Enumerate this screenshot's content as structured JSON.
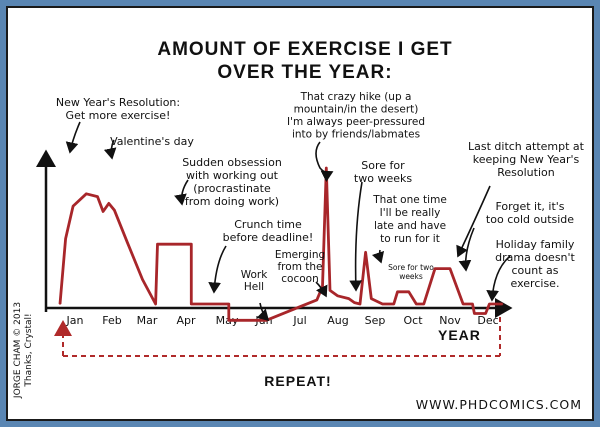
{
  "chart_data": {
    "type": "line",
    "title_lines": [
      "AMOUNT OF EXERCISE I GET",
      "OVER THE YEAR:"
    ],
    "xlabel": "YEAR",
    "ylabel": "",
    "categories": [
      "Jan",
      "Feb",
      "Mar",
      "Apr",
      "May",
      "Jun",
      "Jul",
      "Aug",
      "Sep",
      "Oct",
      "Nov",
      "Dec"
    ],
    "grid": false,
    "series": [
      {
        "values": [
          {
            "x": 0.0,
            "y": 0
          },
          {
            "x": 0.15,
            "y": 4.8
          },
          {
            "x": 0.35,
            "y": 7.2
          },
          {
            "x": 0.7,
            "y": 8.1
          },
          {
            "x": 1.0,
            "y": 7.9
          },
          {
            "x": 1.15,
            "y": 6.8
          },
          {
            "x": 1.3,
            "y": 7.4
          },
          {
            "x": 1.45,
            "y": 6.9
          },
          {
            "x": 1.8,
            "y": 4.5
          },
          {
            "x": 2.2,
            "y": 1.8
          },
          {
            "x": 2.55,
            "y": 0
          },
          {
            "x": 2.6,
            "y": 4.4
          },
          {
            "x": 3.5,
            "y": 4.4
          },
          {
            "x": 3.5,
            "y": 0
          },
          {
            "x": 4.5,
            "y": 0
          },
          {
            "x": 4.5,
            "y": -1.2
          },
          {
            "x": 5.5,
            "y": -1.2
          },
          {
            "x": 6.4,
            "y": -0.2
          },
          {
            "x": 6.85,
            "y": 0.3
          },
          {
            "x": 7.0,
            "y": 1.3
          },
          {
            "x": 7.1,
            "y": 10.0
          },
          {
            "x": 7.2,
            "y": 1.0
          },
          {
            "x": 7.4,
            "y": 0.6
          },
          {
            "x": 7.7,
            "y": 0.4
          },
          {
            "x": 7.85,
            "y": 0.1
          },
          {
            "x": 8.0,
            "y": 0
          },
          {
            "x": 8.15,
            "y": 3.8
          },
          {
            "x": 8.3,
            "y": 0.4
          },
          {
            "x": 8.6,
            "y": 0
          },
          {
            "x": 8.9,
            "y": 0
          },
          {
            "x": 9.0,
            "y": 0.9
          },
          {
            "x": 9.3,
            "y": 0.9
          },
          {
            "x": 9.5,
            "y": 0
          },
          {
            "x": 9.7,
            "y": 0
          },
          {
            "x": 10.0,
            "y": 2.6
          },
          {
            "x": 10.4,
            "y": 2.6
          },
          {
            "x": 10.75,
            "y": 0
          },
          {
            "x": 11.0,
            "y": 0
          },
          {
            "x": 11.05,
            "y": -0.7
          },
          {
            "x": 11.35,
            "y": -0.7
          },
          {
            "x": 11.45,
            "y": 0
          },
          {
            "x": 11.8,
            "y": 0
          }
        ]
      }
    ],
    "loop_label": "REPEAT!",
    "annotations": [
      {
        "id": "resolution",
        "lines": [
          "New Year's Resolution:",
          "Get more exercise!"
        ]
      },
      {
        "id": "valentines",
        "lines": [
          "Valentine's day"
        ]
      },
      {
        "id": "procrastinate",
        "lines": [
          "Sudden obsession",
          "with working out",
          "(procrastinate",
          "from doing work)"
        ]
      },
      {
        "id": "crunch",
        "lines": [
          "Crunch time",
          "before deadline!"
        ]
      },
      {
        "id": "workhell",
        "lines": [
          "Work",
          "Hell"
        ]
      },
      {
        "id": "cocoon",
        "lines": [
          "Emerging",
          "from the",
          "cocoon"
        ]
      },
      {
        "id": "hike",
        "lines": [
          "That crazy hike (up a",
          "mountain/in the desert)",
          "I'm always peer-pressured",
          "into by friends/labmates"
        ]
      },
      {
        "id": "sore1",
        "lines": [
          "Sore for",
          "two weeks"
        ]
      },
      {
        "id": "late",
        "lines": [
          "That one time",
          "I'll be really",
          "late and have",
          "to run for it"
        ]
      },
      {
        "id": "sore2",
        "lines": [
          "Sore for two",
          "weeks"
        ]
      },
      {
        "id": "lastditch",
        "lines": [
          "Last ditch attempt at",
          "keeping New Year's",
          "Resolution"
        ]
      },
      {
        "id": "cold",
        "lines": [
          "Forget it, it's",
          "too cold outside"
        ]
      },
      {
        "id": "holiday",
        "lines": [
          "Holiday family",
          "drama doesn't",
          "count as",
          "exercise."
        ]
      }
    ]
  },
  "credit_lines": [
    "JORGE CHAM © 2013",
    "Thanks, Crystal!"
  ],
  "website": "WWW.PHDCOMICS.COM"
}
